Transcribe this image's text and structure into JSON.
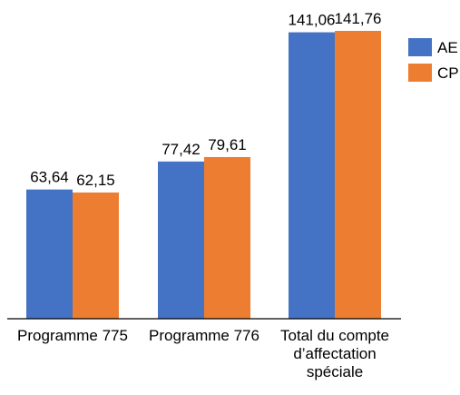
{
  "chart_data": {
    "type": "bar",
    "categories": [
      [
        "Programme 775"
      ],
      [
        "Programme 776"
      ],
      [
        "Total du compte",
        "d’affectation",
        "spéciale"
      ]
    ],
    "series": [
      {
        "name": "AE",
        "values": [
          63.64,
          77.42,
          141.06
        ],
        "labels": [
          "63,64",
          "77,42",
          "141,06"
        ],
        "color": "#4472C4"
      },
      {
        "name": "CP",
        "values": [
          62.15,
          79.61,
          141.76
        ],
        "labels": [
          "62,15",
          "79,61",
          "141,76"
        ],
        "color": "#ED7D31"
      }
    ],
    "title": "",
    "xlabel": "",
    "ylabel": "",
    "ylim": [
      0,
      141.76
    ],
    "grid": false,
    "legend_position": "top-right"
  }
}
